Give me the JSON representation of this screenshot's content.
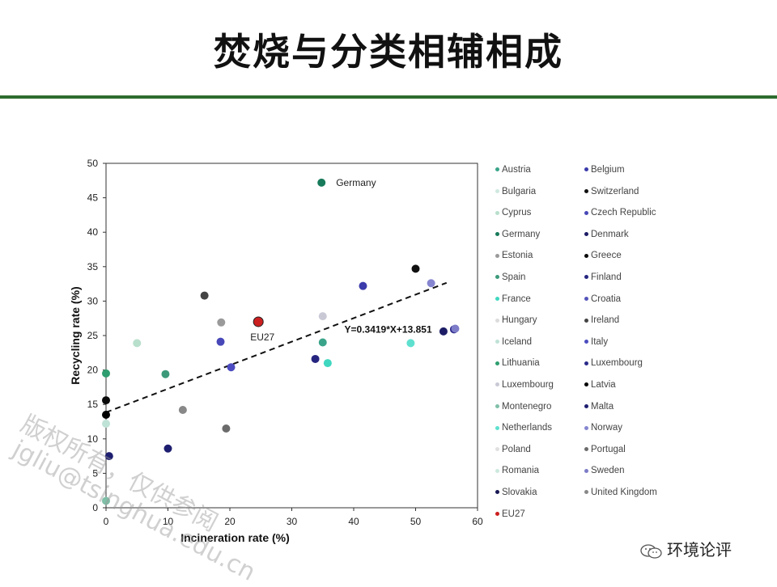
{
  "page": {
    "title": "焚烧与分类相辅相成",
    "footer": "环境论评"
  },
  "watermark": [
    "版权所有，仅供参阅",
    "jgliu@tsinghua.edu.cn"
  ],
  "chart_data": {
    "type": "scatter",
    "xlabel": "Incineration rate (%)",
    "ylabel": "Recycling rate (%)",
    "xlim": [
      0,
      60
    ],
    "ylim": [
      0,
      50
    ],
    "xticks": [
      0,
      10,
      20,
      30,
      40,
      50,
      60
    ],
    "yticks": [
      0,
      5,
      10,
      15,
      20,
      25,
      30,
      35,
      40,
      45,
      50
    ],
    "legend_position": "right",
    "trendline": {
      "equation": "Y=0.3419*X+13.851",
      "slope": 0.3419,
      "intercept": 13.851,
      "x_range": [
        0,
        55
      ]
    },
    "point_labels": [
      {
        "text": "Germany",
        "x": 34.8,
        "y": 47.2
      },
      {
        "text": "EU27",
        "x": 24.6,
        "y": 27.0
      }
    ],
    "series": [
      {
        "name": "Austria",
        "color": "#3aa48a",
        "points": [
          [
            35,
            24
          ]
        ]
      },
      {
        "name": "Belgium",
        "color": "#3b3bab",
        "points": [
          [
            41.5,
            32.2
          ]
        ]
      },
      {
        "name": "Bulgaria",
        "color": "#cfe8e0",
        "points": []
      },
      {
        "name": "Switzerland",
        "color": "#111111",
        "points": [
          [
            50,
            34.7
          ]
        ]
      },
      {
        "name": "Cyprus",
        "color": "#b8dfcc",
        "points": [
          [
            5,
            23.9
          ]
        ]
      },
      {
        "name": "Czech Republic",
        "color": "#4848b8",
        "points": [
          [
            18.5,
            24.1
          ]
        ]
      },
      {
        "name": "Germany",
        "color": "#177a5a",
        "points": [
          [
            34.8,
            47.2
          ]
        ]
      },
      {
        "name": "Denmark",
        "color": "#1c1c66",
        "points": [
          [
            54.5,
            25.6
          ]
        ]
      },
      {
        "name": "Estonia",
        "color": "#9a9a9a",
        "points": [
          [
            18.6,
            26.9
          ]
        ]
      },
      {
        "name": "Greece",
        "color": "#0b0b0b",
        "points": [
          [
            0,
            15.6
          ]
        ]
      },
      {
        "name": "Spain",
        "color": "#3c9a7a",
        "points": [
          [
            9.6,
            19.4
          ]
        ]
      },
      {
        "name": "Finland",
        "color": "#252580",
        "points": [
          [
            33.8,
            21.6
          ]
        ]
      },
      {
        "name": "France",
        "color": "#40d7c0",
        "points": [
          [
            35.8,
            21.0
          ]
        ]
      },
      {
        "name": "Croatia",
        "color": "#5454bb",
        "points": []
      },
      {
        "name": "Hungary",
        "color": "#dcdcdc",
        "points": []
      },
      {
        "name": "Ireland",
        "color": "#444444",
        "points": [
          [
            15.9,
            30.8
          ]
        ]
      },
      {
        "name": "Iceland",
        "color": "#bfe2d6",
        "points": [
          [
            0,
            12.2
          ]
        ]
      },
      {
        "name": "Italy",
        "color": "#4c4cc0",
        "points": [
          [
            20.2,
            20.4
          ]
        ]
      },
      {
        "name": "Lithuania",
        "color": "#2e9e70",
        "points": [
          [
            0,
            19.5
          ]
        ]
      },
      {
        "name": "Luxembourg",
        "color": "#2a2a8a",
        "points": [
          [
            56.2,
            25.9
          ]
        ]
      },
      {
        "name": "Luxembourg",
        "color": "#c9c9d6",
        "points": [
          [
            35,
            27.8
          ]
        ]
      },
      {
        "name": "Latvia",
        "color": "#000000",
        "points": [
          [
            0,
            13.5
          ]
        ]
      },
      {
        "name": "Montenegro",
        "color": "#7fc0a8",
        "points": [
          [
            0,
            1.0
          ]
        ]
      },
      {
        "name": "Malta",
        "color": "#1e1e70",
        "points": [
          [
            0.5,
            7.5
          ],
          [
            10,
            8.6
          ]
        ]
      },
      {
        "name": "Netherlands",
        "color": "#5fe0cf",
        "points": [
          [
            49.2,
            23.9
          ]
        ]
      },
      {
        "name": "Norway",
        "color": "#8585d0",
        "points": [
          [
            52.5,
            32.6
          ]
        ]
      },
      {
        "name": "Poland",
        "color": "#e0e0e0",
        "points": []
      },
      {
        "name": "Portugal",
        "color": "#6b6b6b",
        "points": [
          [
            19.4,
            11.5
          ]
        ]
      },
      {
        "name": "Romania",
        "color": "#cce8dd",
        "points": []
      },
      {
        "name": "Sweden",
        "color": "#7c7cc8",
        "points": [
          [
            56.4,
            26.0
          ]
        ]
      },
      {
        "name": "Slovakia",
        "color": "#181855",
        "points": []
      },
      {
        "name": "United Kingdom",
        "color": "#888888",
        "points": [
          [
            12.4,
            14.2
          ]
        ]
      },
      {
        "name": "EU27",
        "color": "#cc1f1f",
        "points": [
          [
            24.6,
            27.0
          ]
        ]
      }
    ]
  }
}
